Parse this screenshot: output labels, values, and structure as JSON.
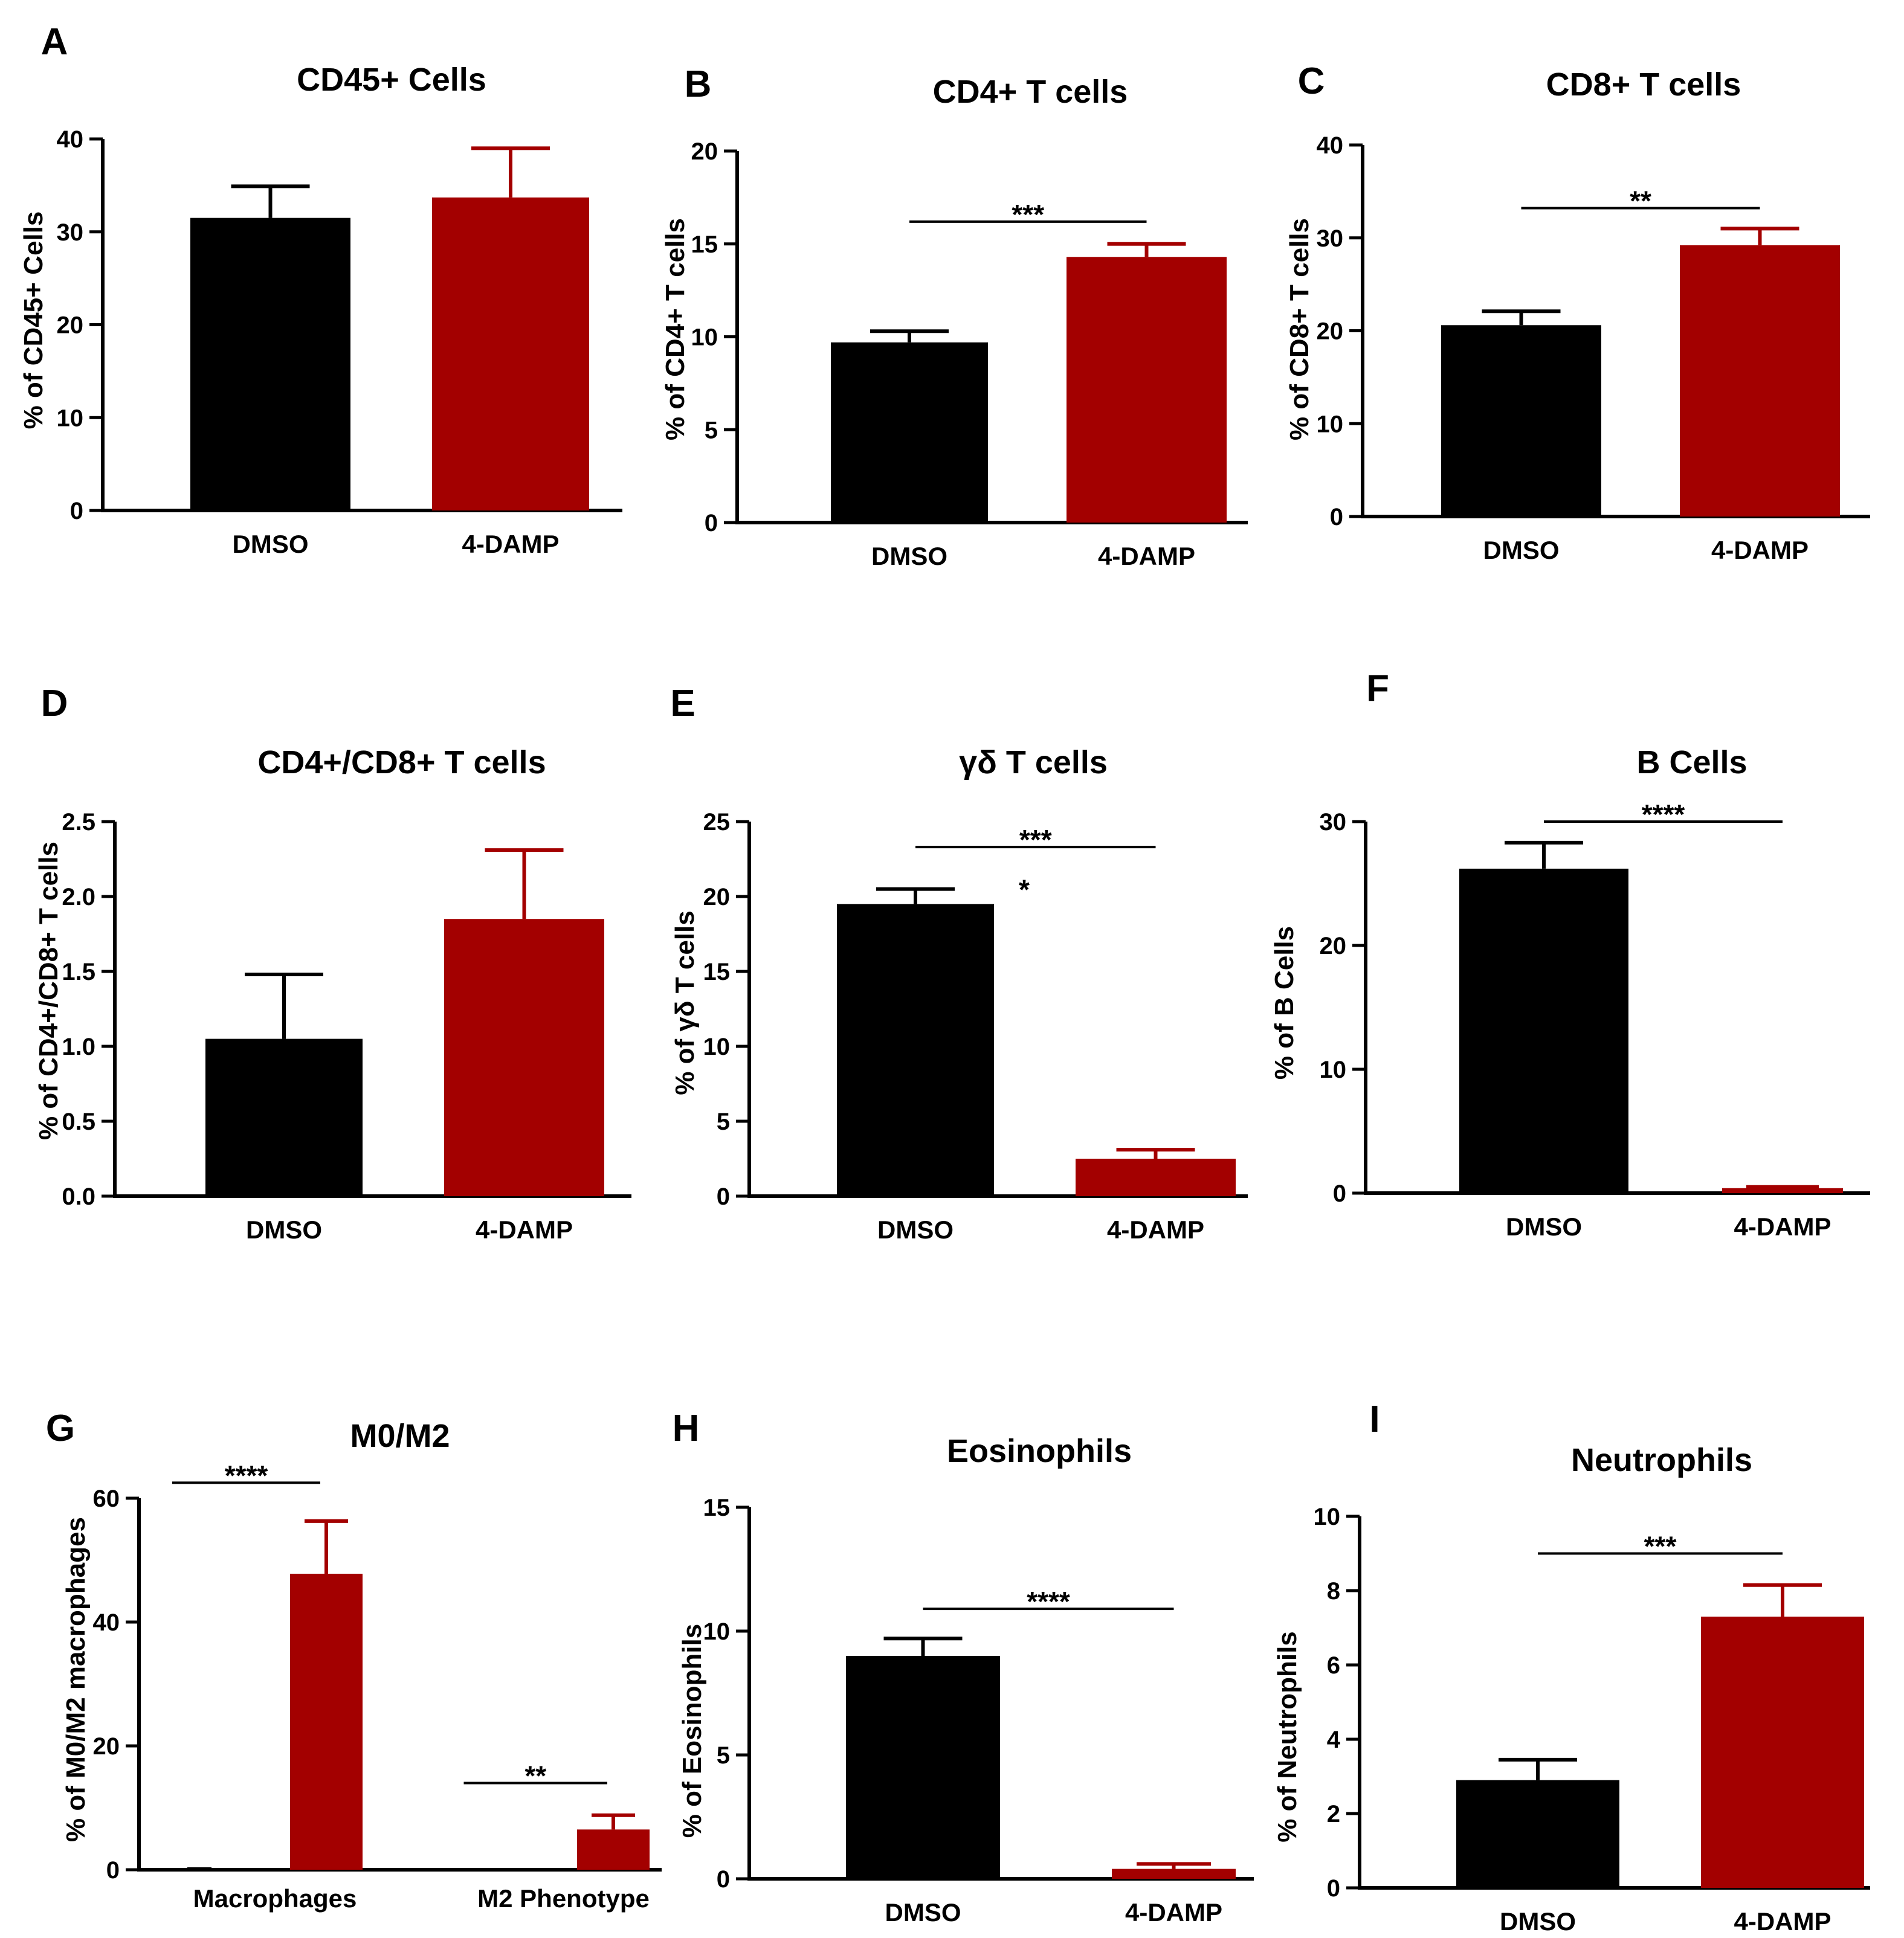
{
  "colors": {
    "DMSO": "#000000",
    "4-DAMP": "#a30000",
    "axis": "#000000"
  },
  "chart_data": [
    {
      "panel": "A",
      "type": "bar",
      "title": "CD45+ Cells",
      "ylabel": "% of CD45+ Cells",
      "categories": [
        "DMSO",
        "4-DAMP"
      ],
      "values": [
        31.5,
        33.7
      ],
      "errors": [
        3.4,
        5.3
      ],
      "ylim": [
        0,
        40
      ],
      "yticks": [
        "0",
        "10",
        "20",
        "30",
        "40"
      ],
      "yticks_num": [
        0,
        10,
        20,
        30,
        40
      ],
      "significance": []
    },
    {
      "panel": "B",
      "type": "bar",
      "title": "CD4+ T cells",
      "ylabel": "% of CD4+ T cells",
      "categories": [
        "DMSO",
        "4-DAMP"
      ],
      "values": [
        9.7,
        14.3
      ],
      "errors": [
        0.6,
        0.7
      ],
      "ylim": [
        0,
        20
      ],
      "yticks": [
        "0",
        "5",
        "10",
        "15",
        "20"
      ],
      "yticks_num": [
        0,
        5,
        10,
        15,
        20
      ],
      "significance": [
        {
          "label": "***",
          "from": 0,
          "to": 1,
          "y": 16.2
        }
      ]
    },
    {
      "panel": "C",
      "type": "bar",
      "title": "CD8+ T cells",
      "ylabel": "% of CD8+ T cells",
      "categories": [
        "DMSO",
        "4-DAMP"
      ],
      "values": [
        20.6,
        29.2
      ],
      "errors": [
        1.5,
        1.8
      ],
      "ylim": [
        0,
        40
      ],
      "yticks": [
        "0",
        "10",
        "20",
        "30",
        "40"
      ],
      "yticks_num": [
        0,
        10,
        20,
        30,
        40
      ],
      "significance": [
        {
          "label": "**",
          "from": 0,
          "to": 1,
          "y": 33.2
        }
      ]
    },
    {
      "panel": "D",
      "type": "bar",
      "title": "CD4+/CD8+ T cells",
      "ylabel": "% of CD4+/CD8+ T cells",
      "categories": [
        "DMSO",
        "4-DAMP"
      ],
      "values": [
        1.05,
        1.85
      ],
      "errors": [
        0.43,
        0.46
      ],
      "ylim": [
        0,
        2.5
      ],
      "yticks": [
        "0.0",
        "0.5",
        "1.0",
        "1.5",
        "2.0",
        "2.5"
      ],
      "yticks_num": [
        0,
        0.5,
        1.0,
        1.5,
        2.0,
        2.5
      ],
      "significance": []
    },
    {
      "panel": "E",
      "type": "bar",
      "title": "γδ T cells",
      "ylabel": "% of γδ T cells",
      "categories": [
        "DMSO",
        "4-DAMP"
      ],
      "values": [
        19.5,
        2.5
      ],
      "errors": [
        1.0,
        0.6
      ],
      "ylim": [
        0,
        25
      ],
      "yticks": [
        "0",
        "5",
        "10",
        "15",
        "20",
        "25"
      ],
      "yticks_num": [
        0,
        5,
        10,
        15,
        20,
        25
      ],
      "significance": [
        {
          "label": "***",
          "from": 0,
          "to": 1,
          "y": 23.3
        }
      ],
      "annotations": [
        {
          "label": "*",
          "at": 0,
          "y": 20.7
        }
      ]
    },
    {
      "panel": "F",
      "type": "bar",
      "title": "B Cells",
      "ylabel": "% of B Cells",
      "categories": [
        "DMSO",
        "4-DAMP"
      ],
      "values": [
        26.2,
        0.4
      ],
      "errors": [
        2.1,
        0.1
      ],
      "ylim": [
        0,
        30
      ],
      "yticks": [
        "0",
        "10",
        "20",
        "30"
      ],
      "yticks_num": [
        0,
        10,
        20,
        30
      ],
      "significance": [
        {
          "label": "****",
          "from": 0,
          "to": 1,
          "y": 30.0
        }
      ]
    },
    {
      "panel": "G",
      "type": "bar",
      "title": "M0/M2",
      "ylabel": "% of M0/M2 macrophages",
      "groups": [
        "Macrophages",
        "M2 Phenotype"
      ],
      "series": [
        {
          "name": "DMSO",
          "values": [
            0.4,
            0.0
          ],
          "errors": [
            0.0,
            0.0
          ]
        },
        {
          "name": "4-DAMP",
          "values": [
            47.8,
            6.5
          ],
          "errors": [
            8.5,
            2.3
          ]
        }
      ],
      "ylim": [
        0,
        60
      ],
      "yticks": [
        "0",
        "20",
        "40",
        "60"
      ],
      "yticks_num": [
        0,
        20,
        40,
        60
      ],
      "significance": [
        {
          "label": "****",
          "group": 0,
          "y": 62.5
        },
        {
          "label": "**",
          "group": 1,
          "y": 14.0
        }
      ]
    },
    {
      "panel": "H",
      "type": "bar",
      "title": "Eosinophils",
      "ylabel": "% of Eosinophils",
      "categories": [
        "DMSO",
        "4-DAMP"
      ],
      "values": [
        9.0,
        0.4
      ],
      "errors": [
        0.7,
        0.2
      ],
      "ylim": [
        0,
        15
      ],
      "yticks": [
        "0",
        "5",
        "10",
        "15"
      ],
      "yticks_num": [
        0,
        5,
        10,
        15
      ],
      "significance": [
        {
          "label": "****",
          "from": 0,
          "to": 1,
          "y": 10.9
        }
      ]
    },
    {
      "panel": "I",
      "type": "bar",
      "title": "Neutrophils",
      "ylabel": "% of Neutrophils",
      "categories": [
        "DMSO",
        "4-DAMP"
      ],
      "values": [
        2.9,
        7.3
      ],
      "errors": [
        0.55,
        0.85
      ],
      "ylim": [
        0,
        10
      ],
      "yticks": [
        "0",
        "2",
        "4",
        "6",
        "8",
        "10"
      ],
      "yticks_num": [
        0,
        2,
        4,
        6,
        8,
        10
      ],
      "significance": [
        {
          "label": "***",
          "from": 0,
          "to": 1,
          "y": 9.0
        }
      ]
    }
  ]
}
